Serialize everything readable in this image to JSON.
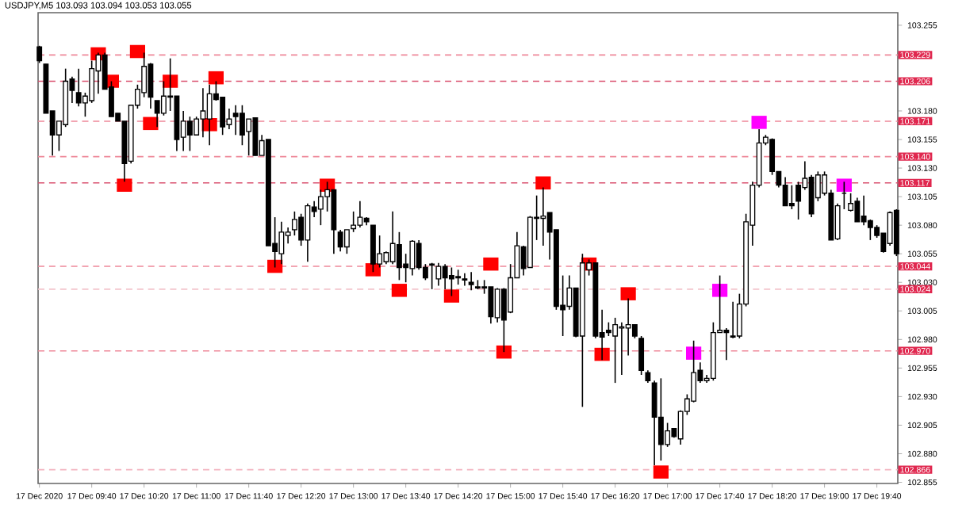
{
  "chart_data": {
    "type": "candlestick",
    "title": "USDJPY,M5 103.093 103.094 103.053 103.055",
    "x": [
      "2020-12-17T09:00",
      "2020-12-17T09:05",
      "2020-12-17T09:10",
      "2020-12-17T09:15",
      "2020-12-17T09:20",
      "2020-12-17T09:25",
      "2020-12-17T09:30",
      "2020-12-17T09:35",
      "2020-12-17T09:40",
      "2020-12-17T09:45",
      "2020-12-17T09:50",
      "2020-12-17T09:55",
      "2020-12-17T10:00",
      "2020-12-17T10:05",
      "2020-12-17T10:10",
      "2020-12-17T10:15",
      "2020-12-17T10:20",
      "2020-12-17T10:25",
      "2020-12-17T10:30",
      "2020-12-17T10:35",
      "2020-12-17T10:40",
      "2020-12-17T10:45",
      "2020-12-17T10:50",
      "2020-12-17T10:55",
      "2020-12-17T11:00",
      "2020-12-17T11:05",
      "2020-12-17T11:10",
      "2020-12-17T11:15",
      "2020-12-17T11:20",
      "2020-12-17T11:25",
      "2020-12-17T11:30",
      "2020-12-17T11:35",
      "2020-12-17T11:40",
      "2020-12-17T11:45",
      "2020-12-17T11:50",
      "2020-12-17T11:55",
      "2020-12-17T12:00",
      "2020-12-17T12:05",
      "2020-12-17T12:10",
      "2020-12-17T12:15",
      "2020-12-17T12:20",
      "2020-12-17T12:25",
      "2020-12-17T12:30",
      "2020-12-17T12:35",
      "2020-12-17T12:40",
      "2020-12-17T12:45",
      "2020-12-17T12:50",
      "2020-12-17T12:55",
      "2020-12-17T13:00",
      "2020-12-17T13:05",
      "2020-12-17T13:10",
      "2020-12-17T13:15",
      "2020-12-17T13:20",
      "2020-12-17T13:25",
      "2020-12-17T13:30",
      "2020-12-17T13:35",
      "2020-12-17T13:40",
      "2020-12-17T13:45",
      "2020-12-17T13:50",
      "2020-12-17T13:55",
      "2020-12-17T14:00",
      "2020-12-17T14:05",
      "2020-12-17T14:10",
      "2020-12-17T14:15",
      "2020-12-17T14:20",
      "2020-12-17T14:25",
      "2020-12-17T14:30",
      "2020-12-17T14:35",
      "2020-12-17T14:40",
      "2020-12-17T14:45",
      "2020-12-17T14:50",
      "2020-12-17T14:55",
      "2020-12-17T15:00",
      "2020-12-17T15:05",
      "2020-12-17T15:10",
      "2020-12-17T15:15",
      "2020-12-17T15:20",
      "2020-12-17T15:25",
      "2020-12-17T15:30",
      "2020-12-17T15:35",
      "2020-12-17T15:40",
      "2020-12-17T15:45",
      "2020-12-17T15:50",
      "2020-12-17T15:55",
      "2020-12-17T16:00",
      "2020-12-17T16:05",
      "2020-12-17T16:10",
      "2020-12-17T16:15",
      "2020-12-17T16:20",
      "2020-12-17T16:25",
      "2020-12-17T16:30",
      "2020-12-17T16:35",
      "2020-12-17T16:40",
      "2020-12-17T16:45",
      "2020-12-17T16:50",
      "2020-12-17T16:55",
      "2020-12-17T17:00",
      "2020-12-17T17:05",
      "2020-12-17T17:10",
      "2020-12-17T17:15",
      "2020-12-17T17:20",
      "2020-12-17T17:25",
      "2020-12-17T17:30",
      "2020-12-17T17:35",
      "2020-12-17T17:40",
      "2020-12-17T17:45",
      "2020-12-17T17:50",
      "2020-12-17T17:55",
      "2020-12-17T18:00",
      "2020-12-17T18:05",
      "2020-12-17T18:10",
      "2020-12-17T18:15",
      "2020-12-17T18:20",
      "2020-12-17T18:25",
      "2020-12-17T18:30",
      "2020-12-17T18:35",
      "2020-12-17T18:40",
      "2020-12-17T18:45",
      "2020-12-17T18:50",
      "2020-12-17T18:55",
      "2020-12-17T19:00",
      "2020-12-17T19:05",
      "2020-12-17T19:10",
      "2020-12-17T19:15",
      "2020-12-17T19:20",
      "2020-12-17T19:25",
      "2020-12-17T19:30",
      "2020-12-17T19:35",
      "2020-12-17T19:40",
      "2020-12-17T19:45",
      "2020-12-17T19:50",
      "2020-12-17T19:55"
    ],
    "ohlc": [
      [
        103.236,
        103.237,
        103.222,
        103.224
      ],
      [
        103.221,
        103.221,
        103.178,
        103.178
      ],
      [
        103.18,
        103.18,
        103.141,
        103.159
      ],
      [
        103.159,
        103.171,
        103.145,
        103.171
      ],
      [
        103.168,
        103.217,
        103.166,
        103.206
      ],
      [
        103.208,
        103.21,
        103.187,
        103.198
      ],
      [
        103.196,
        103.217,
        103.184,
        103.187
      ],
      [
        103.187,
        103.196,
        103.175,
        103.193
      ],
      [
        103.189,
        103.224,
        103.187,
        103.217
      ],
      [
        103.215,
        103.231,
        103.195,
        103.229
      ],
      [
        103.229,
        103.231,
        103.199,
        103.199
      ],
      [
        103.201,
        103.206,
        103.175,
        103.175
      ],
      [
        103.178,
        103.178,
        103.171,
        103.171
      ],
      [
        103.171,
        103.171,
        103.118,
        103.134
      ],
      [
        103.136,
        103.185,
        103.134,
        103.185
      ],
      [
        103.185,
        103.203,
        103.182,
        103.199
      ],
      [
        103.196,
        103.231,
        103.192,
        103.219
      ],
      [
        103.221,
        103.222,
        103.182,
        103.192
      ],
      [
        103.189,
        103.189,
        103.166,
        103.178
      ],
      [
        103.178,
        103.206,
        103.176,
        103.193
      ],
      [
        103.193,
        103.226,
        103.18,
        103.192
      ],
      [
        103.193,
        103.193,
        103.145,
        103.155
      ],
      [
        103.157,
        103.18,
        103.145,
        103.171
      ],
      [
        103.171,
        103.175,
        103.145,
        103.159
      ],
      [
        103.159,
        103.175,
        103.159,
        103.173
      ],
      [
        103.173,
        103.2,
        103.157,
        103.18
      ],
      [
        103.173,
        103.203,
        103.15,
        103.195
      ],
      [
        103.195,
        103.206,
        103.189,
        103.19
      ],
      [
        103.192,
        103.192,
        103.159,
        103.166
      ],
      [
        103.168,
        103.182,
        103.164,
        103.173
      ],
      [
        103.178,
        103.185,
        103.159,
        103.175
      ],
      [
        103.178,
        103.185,
        103.15,
        103.159
      ],
      [
        103.162,
        103.173,
        103.141,
        103.173
      ],
      [
        103.174,
        103.174,
        103.141,
        103.141
      ],
      [
        103.141,
        103.159,
        103.141,
        103.154
      ],
      [
        103.155,
        103.155,
        103.062,
        103.062
      ],
      [
        103.064,
        103.087,
        103.043,
        103.057
      ],
      [
        103.055,
        103.083,
        103.046,
        103.074
      ],
      [
        103.071,
        103.078,
        103.064,
        103.074
      ],
      [
        103.076,
        103.092,
        103.071,
        103.085
      ],
      [
        103.087,
        103.09,
        103.062,
        103.067
      ],
      [
        103.067,
        103.099,
        103.048,
        103.097
      ],
      [
        103.096,
        103.101,
        103.087,
        103.092
      ],
      [
        103.094,
        103.111,
        103.08,
        103.105
      ],
      [
        103.105,
        103.118,
        103.092,
        103.111
      ],
      [
        103.111,
        103.111,
        103.055,
        103.076
      ],
      [
        103.074,
        103.076,
        103.057,
        103.061
      ],
      [
        103.061,
        103.076,
        103.055,
        103.076
      ],
      [
        103.077,
        103.092,
        103.074,
        103.08
      ],
      [
        103.08,
        103.101,
        103.078,
        103.087
      ],
      [
        103.086,
        103.087,
        103.08,
        103.083
      ],
      [
        103.08,
        103.08,
        103.039,
        103.046
      ],
      [
        103.046,
        103.071,
        103.043,
        103.055
      ],
      [
        103.048,
        103.057,
        103.046,
        103.056
      ],
      [
        103.048,
        103.092,
        103.046,
        103.064
      ],
      [
        103.063,
        103.074,
        103.032,
        103.043
      ],
      [
        103.046,
        103.055,
        103.03,
        103.043
      ],
      [
        103.042,
        103.067,
        103.036,
        103.066
      ],
      [
        103.064,
        103.067,
        103.041,
        103.043
      ],
      [
        103.043,
        103.046,
        103.032,
        103.034
      ],
      [
        103.046,
        103.047,
        103.024,
        103.045
      ],
      [
        103.033,
        103.047,
        103.027,
        103.044
      ],
      [
        103.044,
        103.046,
        103.024,
        103.034
      ],
      [
        103.036,
        103.043,
        103.018,
        103.033
      ],
      [
        103.035,
        103.041,
        103.028,
        103.034
      ],
      [
        103.033,
        103.038,
        103.027,
        103.032
      ],
      [
        103.03,
        103.039,
        103.023,
        103.028
      ],
      [
        103.026,
        103.032,
        103.024,
        103.025
      ],
      [
        103.025,
        103.032,
        103.02,
        103.026
      ],
      [
        103.026,
        103.026,
        102.994,
        103.0
      ],
      [
        102.999,
        103.025,
        102.995,
        103.024
      ],
      [
        103.024,
        103.025,
        102.969,
        102.997
      ],
      [
        103.004,
        103.046,
        103.003,
        103.034
      ],
      [
        103.034,
        103.074,
        103.034,
        103.062
      ],
      [
        103.061,
        103.062,
        103.036,
        103.042
      ],
      [
        103.043,
        103.088,
        103.043,
        103.087
      ],
      [
        103.087,
        103.106,
        103.067,
        103.086
      ],
      [
        103.086,
        103.113,
        103.062,
        103.088
      ],
      [
        103.091,
        103.091,
        103.05,
        103.074
      ],
      [
        103.076,
        103.076,
        103.006,
        103.009
      ],
      [
        103.01,
        103.036,
        102.983,
        103.006
      ],
      [
        103.009,
        103.036,
        103.006,
        103.025
      ],
      [
        103.025,
        103.025,
        102.982,
        102.983
      ],
      [
        102.983,
        103.055,
        102.921,
        103.047
      ],
      [
        103.041,
        103.05,
        103.036,
        103.047
      ],
      [
        103.047,
        103.047,
        102.981,
        102.983
      ],
      [
        102.986,
        103.006,
        102.962,
        102.982
      ],
      [
        102.988,
        102.995,
        102.983,
        102.986
      ],
      [
        102.983,
        102.999,
        102.942,
        102.993
      ],
      [
        102.99,
        102.995,
        102.949,
        102.991
      ],
      [
        102.99,
        103.016,
        102.966,
        102.993
      ],
      [
        102.993,
        102.993,
        102.981,
        102.983
      ],
      [
        102.981,
        102.983,
        102.949,
        102.953
      ],
      [
        102.951,
        102.953,
        102.942,
        102.944
      ],
      [
        102.942,
        102.944,
        102.87,
        102.912
      ],
      [
        102.912,
        102.946,
        102.874,
        102.888
      ],
      [
        102.888,
        102.907,
        102.886,
        102.9
      ],
      [
        102.902,
        102.902,
        102.894,
        102.895
      ],
      [
        102.893,
        102.918,
        102.888,
        102.917
      ],
      [
        102.917,
        102.932,
        102.914,
        102.928
      ],
      [
        102.926,
        102.979,
        102.925,
        102.951
      ],
      [
        102.953,
        102.96,
        102.942,
        102.944
      ],
      [
        102.944,
        102.949,
        102.942,
        102.946
      ],
      [
        102.946,
        102.995,
        102.944,
        102.986
      ],
      [
        102.986,
        103.036,
        102.986,
        102.988
      ],
      [
        102.988,
        102.99,
        102.962,
        102.986
      ],
      [
        102.983,
        103.013,
        102.981,
        102.982
      ],
      [
        102.983,
        103.02,
        102.981,
        103.011
      ],
      [
        103.011,
        103.09,
        103.009,
        103.083
      ],
      [
        103.08,
        103.118,
        103.062,
        103.115
      ],
      [
        103.115,
        103.164,
        103.113,
        103.152
      ],
      [
        103.152,
        103.159,
        103.15,
        103.157
      ],
      [
        103.155,
        103.156,
        103.124,
        103.127
      ],
      [
        103.127,
        103.127,
        103.113,
        103.115
      ],
      [
        103.115,
        103.122,
        103.097,
        103.097
      ],
      [
        103.099,
        103.115,
        103.094,
        103.097
      ],
      [
        103.115,
        103.118,
        103.085,
        103.101
      ],
      [
        103.113,
        103.136,
        103.111,
        103.121
      ],
      [
        103.122,
        103.124,
        103.087,
        103.09
      ],
      [
        103.104,
        103.127,
        103.101,
        103.124
      ],
      [
        103.108,
        103.127,
        103.106,
        103.124
      ],
      [
        103.108,
        103.111,
        103.067,
        103.067
      ],
      [
        103.068,
        103.099,
        103.067,
        103.097
      ],
      [
        103.108,
        103.118,
        103.094,
        103.108
      ],
      [
        103.093,
        103.108,
        103.092,
        103.099
      ],
      [
        103.101,
        103.104,
        103.083,
        103.083
      ],
      [
        103.088,
        103.106,
        103.08,
        103.083
      ],
      [
        103.084,
        103.085,
        103.067,
        103.078
      ],
      [
        103.078,
        103.08,
        103.069,
        103.071
      ],
      [
        103.073,
        103.073,
        103.056,
        103.057
      ],
      [
        103.064,
        103.092,
        103.062,
        103.091
      ],
      [
        103.093,
        103.094,
        103.053,
        103.055
      ]
    ],
    "series": [
      {
        "type": "scatter",
        "marker": "square",
        "color": "#ff0000",
        "x": [
          "2020-12-17T09:45",
          "2020-12-17T09:55",
          "2020-12-17T10:05",
          "2020-12-17T10:15",
          "2020-12-17T10:25",
          "2020-12-17T10:40",
          "2020-12-17T11:10",
          "2020-12-17T11:15",
          "2020-12-17T12:00",
          "2020-12-17T12:40",
          "2020-12-17T13:15",
          "2020-12-17T13:35",
          "2020-12-17T14:15",
          "2020-12-17T14:45",
          "2020-12-17T14:55",
          "2020-12-17T15:25",
          "2020-12-17T16:00",
          "2020-12-17T16:10",
          "2020-12-17T16:30",
          "2020-12-17T16:55"
        ],
        "values": [
          103.23,
          103.206,
          103.115,
          103.232,
          103.169,
          103.206,
          103.168,
          103.209,
          103.044,
          103.115,
          103.041,
          103.023,
          103.018,
          103.046,
          102.969,
          103.117,
          103.046,
          102.967,
          103.02,
          102.864
        ]
      },
      {
        "type": "scatter",
        "marker": "square",
        "color": "#ff00ff",
        "x": [
          "2020-12-17T17:20",
          "2020-12-17T17:40",
          "2020-12-17T18:10",
          "2020-12-17T19:15"
        ],
        "values": [
          102.968,
          103.023,
          103.17,
          103.115
        ]
      }
    ],
    "ref_lines": [
      {
        "axis": "y",
        "value": 103.229,
        "label": "103.229",
        "color": "#ee8899",
        "line_style": "dashed"
      },
      {
        "axis": "y",
        "value": 103.206,
        "label": "103.206",
        "color": "#d9506e",
        "line_style": "dashed"
      },
      {
        "axis": "y",
        "value": 103.171,
        "label": "103.171",
        "color": "#ee8899",
        "line_style": "dashed"
      },
      {
        "axis": "y",
        "value": 103.14,
        "label": "103.140",
        "color": "#ee8899",
        "line_style": "dashed"
      },
      {
        "axis": "y",
        "value": 103.117,
        "label": "103.117",
        "color": "#d9506e",
        "line_style": "dashed"
      },
      {
        "axis": "y",
        "value": 103.044,
        "label": "103.044",
        "color": "#ee8899",
        "line_style": "dashed"
      },
      {
        "axis": "y",
        "value": 103.024,
        "label": "103.024",
        "color": "#f3c4cc",
        "line_style": "dashed"
      },
      {
        "axis": "y",
        "value": 102.97,
        "label": "102.970",
        "color": "#ee8899",
        "line_style": "dashed"
      },
      {
        "axis": "y",
        "value": 102.866,
        "label": "102.866",
        "color": "#f3b4c0",
        "line_style": "dashed"
      }
    ],
    "xlim": [
      "2020-12-17T08:59",
      "2020-12-17T19:56"
    ],
    "xticks": [
      {
        "value": "2020-12-17T09:00",
        "label": "17 Dec 2020"
      },
      {
        "value": "2020-12-17T09:40",
        "label": "17 Dec 09:40"
      },
      {
        "value": "2020-12-17T10:20",
        "label": "17 Dec 10:20"
      },
      {
        "value": "2020-12-17T11:00",
        "label": "17 Dec 11:00"
      },
      {
        "value": "2020-12-17T11:40",
        "label": "17 Dec 11:40"
      },
      {
        "value": "2020-12-17T12:20",
        "label": "17 Dec 12:20"
      },
      {
        "value": "2020-12-17T13:00",
        "label": "17 Dec 13:00"
      },
      {
        "value": "2020-12-17T13:40",
        "label": "17 Dec 13:40"
      },
      {
        "value": "2020-12-17T14:20",
        "label": "17 Dec 14:20"
      },
      {
        "value": "2020-12-17T15:00",
        "label": "17 Dec 15:00"
      },
      {
        "value": "2020-12-17T15:40",
        "label": "17 Dec 15:40"
      },
      {
        "value": "2020-12-17T16:20",
        "label": "17 Dec 16:20"
      },
      {
        "value": "2020-12-17T17:00",
        "label": "17 Dec 17:00"
      },
      {
        "value": "2020-12-17T17:40",
        "label": "17 Dec 17:40"
      },
      {
        "value": "2020-12-17T18:20",
        "label": "17 Dec 18:20"
      },
      {
        "value": "2020-12-17T19:00",
        "label": "17 Dec 19:00"
      },
      {
        "value": "2020-12-17T19:40",
        "label": "17 Dec 19:40"
      }
    ],
    "ylim": [
      102.854,
      103.266
    ],
    "yticks": [
      103.255,
      {
        "value": 103.23,
        "label": null
      },
      {
        "value": 103.205,
        "label": null
      },
      {
        "value": 103.18,
        "label": "103.180"
      },
      103.155,
      {
        "value": 103.13,
        "label": "103.130"
      },
      103.105,
      {
        "value": 103.08,
        "label": "103.080"
      },
      103.055,
      {
        "value": 103.03,
        "label": "103.030"
      },
      103.005,
      {
        "value": 102.98,
        "label": "102.980"
      },
      102.955,
      {
        "value": 102.93,
        "label": "102.930"
      },
      102.905,
      {
        "value": 102.88,
        "label": "102.880"
      },
      102.855
    ],
    "grid": false
  }
}
